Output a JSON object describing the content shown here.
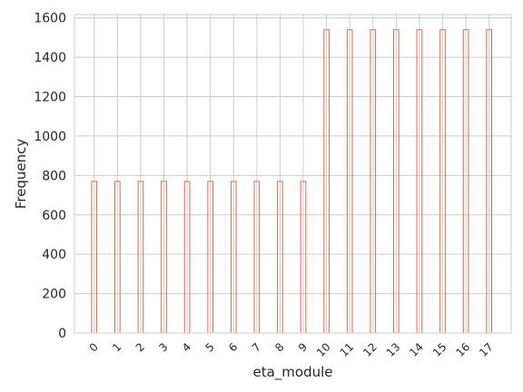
{
  "chart_data": {
    "type": "bar",
    "title": "",
    "xlabel": "eta_module",
    "ylabel": "Frequency",
    "categories": [
      "0",
      "1",
      "2",
      "3",
      "4",
      "5",
      "6",
      "7",
      "8",
      "9",
      "10",
      "11",
      "12",
      "13",
      "14",
      "15",
      "16",
      "17"
    ],
    "values": [
      770,
      770,
      770,
      770,
      770,
      770,
      770,
      770,
      770,
      770,
      1540,
      1540,
      1540,
      1540,
      1540,
      1540,
      1540,
      1540
    ],
    "xlim": [
      -0.85,
      17.95
    ],
    "ylim": [
      0,
      1617
    ],
    "yticks": [
      0,
      200,
      400,
      600,
      800,
      1000,
      1200,
      1400,
      1600
    ],
    "grid": true,
    "bar_style": "step-outline",
    "colors": {
      "bar_edge": "#e0694d",
      "grid": "#cccccc",
      "spine": "#cccccc",
      "text": "#262626"
    }
  }
}
